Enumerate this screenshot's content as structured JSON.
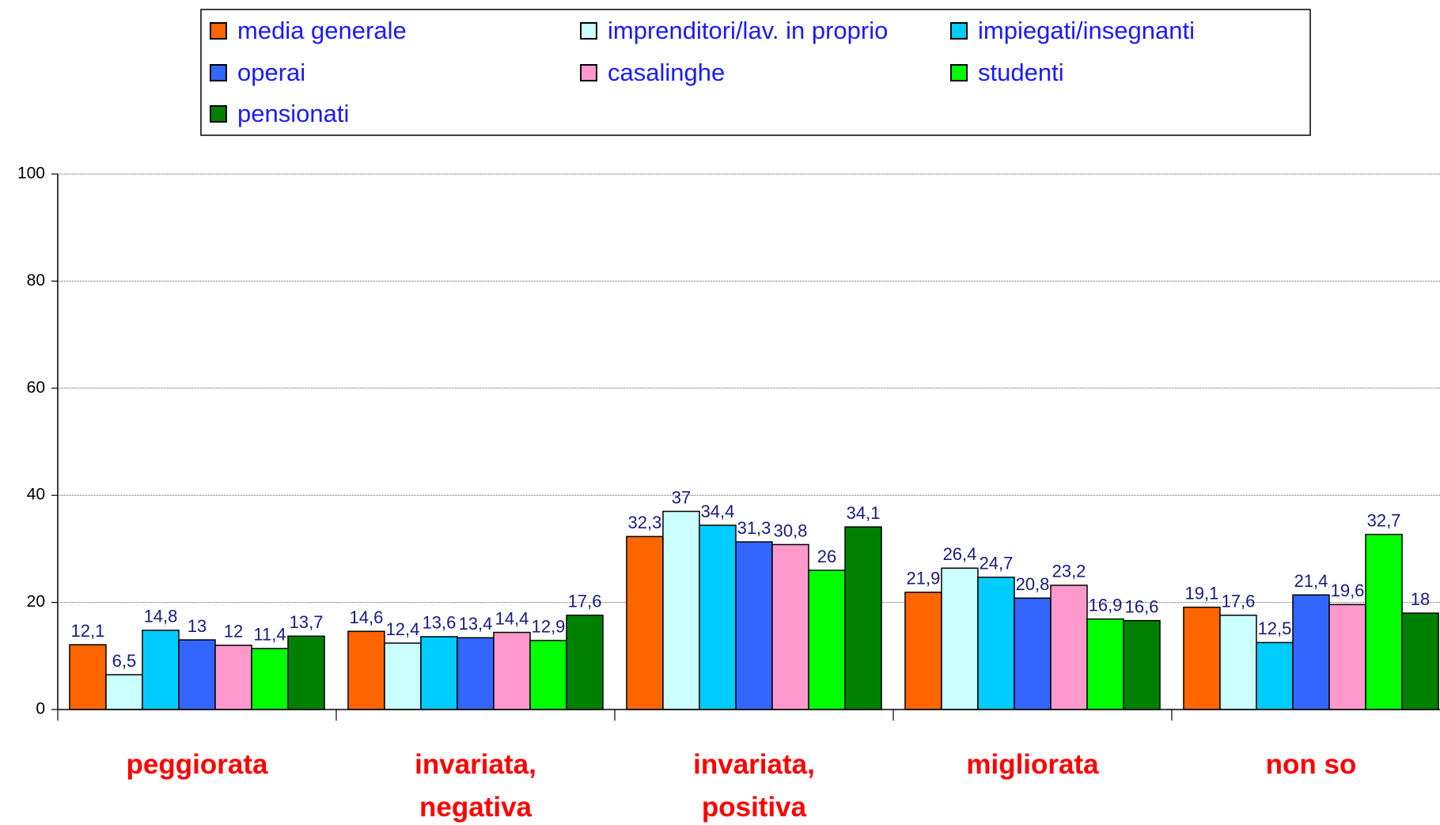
{
  "chart_data": {
    "type": "bar",
    "categories": [
      "peggiorata",
      "invariata, negativa",
      "invariata, positiva",
      "migliorata",
      "non so"
    ],
    "series": [
      {
        "name": "media generale",
        "color": "#ff6600",
        "values": [
          12.1,
          14.6,
          32.3,
          21.9,
          19.1
        ],
        "value_labels": [
          "12,1",
          "14,6",
          "32,3",
          "21,9",
          "19,1"
        ]
      },
      {
        "name": "imprenditori/lav. in proprio",
        "color": "#ccffff",
        "values": [
          6.5,
          12.4,
          37,
          26.4,
          17.6
        ],
        "value_labels": [
          "6,5",
          "12,4",
          "37",
          "26,4",
          "17,6"
        ]
      },
      {
        "name": "impiegati/insegnanti",
        "color": "#00ccff",
        "values": [
          14.8,
          13.6,
          34.4,
          24.7,
          12.5
        ],
        "value_labels": [
          "14,8",
          "13,6",
          "34,4",
          "24,7",
          "12,5"
        ]
      },
      {
        "name": "operai",
        "color": "#3366ff",
        "values": [
          13,
          13.4,
          31.3,
          20.8,
          21.4
        ],
        "value_labels": [
          "13",
          "13,4",
          "31,3",
          "20,8",
          "21,4"
        ]
      },
      {
        "name": "casalinghe",
        "color": "#ff99cc",
        "values": [
          12,
          14.4,
          30.8,
          23.2,
          19.6
        ],
        "value_labels": [
          "12",
          "14,4",
          "30,8",
          "23,2",
          "19,6"
        ]
      },
      {
        "name": "studenti",
        "color": "#00ff00",
        "values": [
          11.4,
          12.9,
          26,
          16.9,
          32.7
        ],
        "value_labels": [
          "11,4",
          "12,9",
          "26",
          "16,9",
          "32,7"
        ]
      },
      {
        "name": "pensionati",
        "color": "#008000",
        "values": [
          13.7,
          17.6,
          34.1,
          16.6,
          18
        ],
        "value_labels": [
          "13,7",
          "17,6",
          "34,1",
          "16,6",
          "18"
        ]
      }
    ],
    "ylim": [
      0,
      100
    ],
    "yticks": [
      0,
      20,
      40,
      60,
      80,
      100
    ],
    "grid": true,
    "legend": "top"
  }
}
